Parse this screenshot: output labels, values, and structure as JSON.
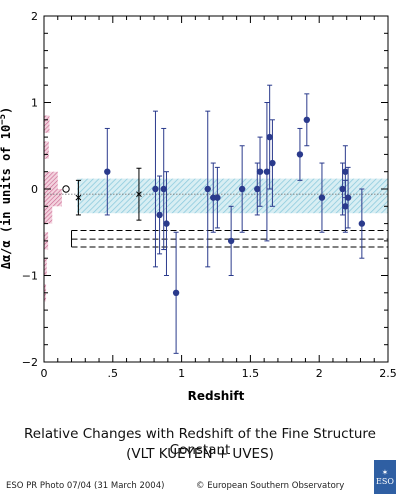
{
  "chart_data": {
    "type": "scatter",
    "xlabel": "Redshift",
    "ylabel": "Δα/α (in units of 10",
    "ylabel_exp": "−5",
    "ylabel_close": ")",
    "xlim": [
      0,
      2.5
    ],
    "ylim": [
      -2,
      2
    ],
    "x_ticks": [
      0,
      0.5,
      1,
      1.5,
      2,
      2.5
    ],
    "x_tick_labels": [
      "0",
      ".5",
      "1",
      "1.5",
      "2",
      "2.5"
    ],
    "y_ticks": [
      -2,
      -1,
      0,
      1,
      2
    ],
    "y_tick_labels": [
      "−2",
      "−1",
      "0",
      "1",
      "2"
    ],
    "mean_line": -0.06,
    "mean_band": [
      -0.28,
      0.12
    ],
    "dashed_lines": [
      -0.48,
      -0.58,
      -0.67
    ],
    "dashed_x_range": [
      0.2,
      2.5
    ],
    "series": [
      {
        "marker": "filled-circle",
        "color": "#2a3a8c",
        "points": [
          {
            "x": 0.46,
            "y": 0.2,
            "err": 0.5
          },
          {
            "x": 0.81,
            "y": 0.0,
            "err": 0.9
          },
          {
            "x": 0.84,
            "y": -0.3,
            "err": 0.45
          },
          {
            "x": 0.87,
            "y": 0.0,
            "err": 0.7
          },
          {
            "x": 0.89,
            "y": -0.4,
            "err": 0.6
          },
          {
            "x": 0.96,
            "y": -1.2,
            "err": 0.7
          },
          {
            "x": 1.19,
            "y": 0.0,
            "err": 0.9
          },
          {
            "x": 1.23,
            "y": -0.1,
            "err": 0.4
          },
          {
            "x": 1.26,
            "y": -0.1,
            "err": 0.35
          },
          {
            "x": 1.36,
            "y": -0.6,
            "err": 0.4
          },
          {
            "x": 1.44,
            "y": 0.0,
            "err": 0.5
          },
          {
            "x": 1.55,
            "y": 0.0,
            "err": 0.3
          },
          {
            "x": 1.57,
            "y": 0.2,
            "err": 0.4
          },
          {
            "x": 1.62,
            "y": 0.2,
            "err": 0.8
          },
          {
            "x": 1.64,
            "y": 0.6,
            "err": 0.6
          },
          {
            "x": 1.66,
            "y": 0.3,
            "err": 0.5
          },
          {
            "x": 1.86,
            "y": 0.4,
            "err": 0.3
          },
          {
            "x": 1.91,
            "y": 0.8,
            "err": 0.3
          },
          {
            "x": 2.02,
            "y": -0.1,
            "err": 0.4
          },
          {
            "x": 2.17,
            "y": 0.0,
            "err": 0.3
          },
          {
            "x": 2.19,
            "y": -0.2,
            "err": 0.3
          },
          {
            "x": 2.19,
            "y": 0.2,
            "err": 0.3
          },
          {
            "x": 2.21,
            "y": -0.1,
            "err": 0.35
          },
          {
            "x": 2.31,
            "y": -0.4,
            "err": 0.4
          }
        ]
      },
      {
        "marker": "cross",
        "color": "#000000",
        "points": [
          {
            "x": 0.25,
            "y": -0.1,
            "err": 0.2
          },
          {
            "x": 0.69,
            "y": -0.06,
            "err": 0.3
          }
        ]
      },
      {
        "marker": "open-circle",
        "color": "#000000",
        "points": [
          {
            "x": 0.16,
            "y": 0.0,
            "err": 0.0
          }
        ]
      }
    ],
    "histogram": {
      "color": "#c8608c",
      "y_centers": [
        0.75,
        0.45,
        0.1,
        -0.1,
        -0.3,
        -0.6,
        -0.9,
        -1.2
      ],
      "heights": [
        0.04,
        0.035,
        0.1,
        0.13,
        0.06,
        0.03,
        0.02,
        0.015
      ]
    }
  },
  "caption": {
    "title": "Relative Changes with Redshift of the Fine Structure Constant",
    "subtitle": "(VLT KUEYEN + UVES)"
  },
  "footer": {
    "left": "ESO PR Photo 07/04 (31 March 2004)",
    "right": "© European Southern Observatory"
  },
  "logo": {
    "text": "ESO"
  }
}
